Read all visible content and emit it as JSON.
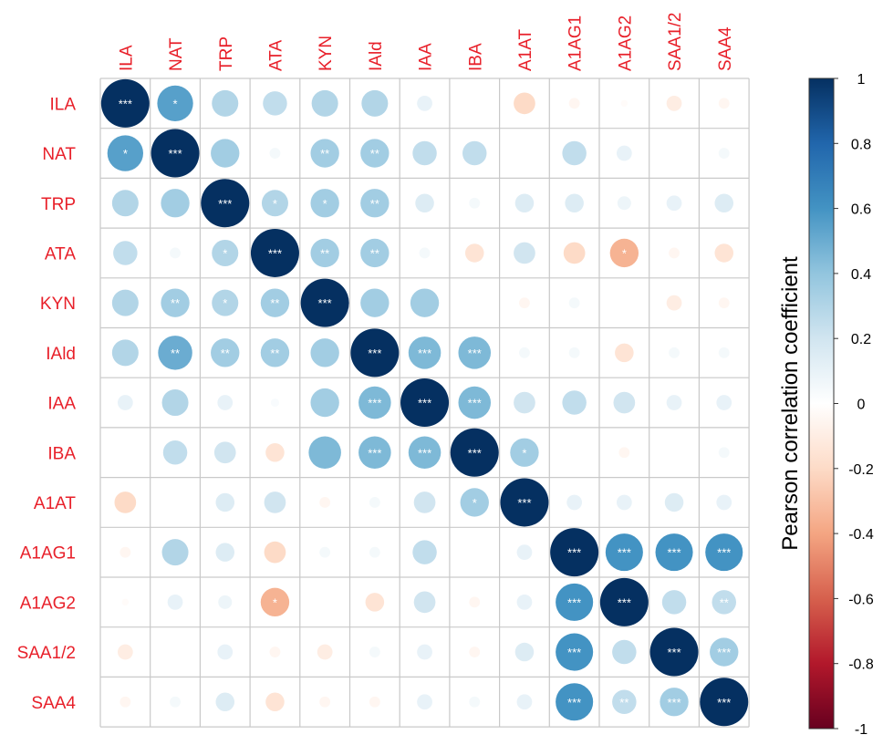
{
  "chart_data": {
    "type": "heatmap",
    "subtype": "correlation-circle-matrix",
    "variables": [
      "ILA",
      "NAT",
      "TRP",
      "ATA",
      "KYN",
      "IAld",
      "IAA",
      "IBA",
      "A1AT",
      "A1AG1",
      "A1AG2",
      "SAA1/2",
      "SAA4"
    ],
    "matrix": [
      [
        1.0,
        0.55,
        0.3,
        0.25,
        0.3,
        0.3,
        0.1,
        0.0,
        -0.2,
        -0.05,
        -0.02,
        -0.1,
        -0.05
      ],
      [
        0.55,
        1.0,
        0.35,
        0.05,
        0.35,
        0.35,
        0.25,
        0.25,
        0.0,
        0.25,
        0.1,
        0.0,
        0.05
      ],
      [
        0.3,
        0.35,
        1.0,
        0.3,
        0.35,
        0.35,
        0.15,
        0.05,
        0.15,
        0.15,
        0.08,
        0.1,
        0.15
      ],
      [
        0.25,
        0.05,
        0.3,
        1.0,
        0.35,
        0.35,
        0.05,
        -0.15,
        0.2,
        -0.2,
        -0.35,
        -0.05,
        -0.15
      ],
      [
        0.3,
        0.35,
        0.3,
        0.35,
        1.0,
        0.35,
        0.35,
        0.0,
        -0.05,
        0.05,
        0.0,
        -0.1,
        -0.05
      ],
      [
        0.3,
        0.5,
        0.35,
        0.35,
        0.35,
        1.0,
        0.45,
        0.45,
        0.05,
        0.05,
        -0.15,
        0.05,
        0.05
      ],
      [
        0.1,
        0.3,
        0.1,
        0.03,
        0.35,
        0.45,
        1.0,
        0.45,
        0.2,
        0.25,
        0.2,
        0.1,
        0.1
      ],
      [
        0.0,
        0.25,
        0.2,
        -0.15,
        0.45,
        0.45,
        0.45,
        1.0,
        0.35,
        0.0,
        -0.05,
        0.0,
        0.05
      ],
      [
        -0.2,
        0.0,
        0.15,
        0.2,
        -0.05,
        0.05,
        0.2,
        0.35,
        1.0,
        0.1,
        0.1,
        0.15,
        0.1
      ],
      [
        -0.05,
        0.3,
        0.15,
        -0.2,
        0.05,
        0.05,
        0.25,
        0.0,
        0.1,
        1.0,
        0.6,
        0.6,
        0.6
      ],
      [
        -0.02,
        0.1,
        0.08,
        -0.35,
        0.0,
        -0.15,
        0.2,
        -0.05,
        0.1,
        0.6,
        1.0,
        0.25,
        0.25
      ],
      [
        -0.1,
        0.0,
        0.1,
        -0.05,
        -0.1,
        0.05,
        0.1,
        -0.05,
        0.15,
        0.6,
        0.25,
        1.0,
        0.35
      ],
      [
        -0.05,
        0.05,
        0.15,
        -0.15,
        -0.05,
        -0.05,
        0.1,
        0.05,
        0.1,
        0.6,
        0.25,
        0.35,
        1.0
      ]
    ],
    "significance": [
      [
        "***",
        "*",
        "",
        "",
        "",
        "",
        "",
        "",
        "",
        "",
        "",
        "",
        ""
      ],
      [
        "*",
        "***",
        "",
        "",
        "**",
        "**",
        "",
        "",
        "",
        "",
        "",
        "",
        ""
      ],
      [
        "",
        "",
        "***",
        "*",
        "*",
        "**",
        "",
        "",
        "",
        "",
        "",
        "",
        ""
      ],
      [
        "",
        "",
        "*",
        "***",
        "**",
        "**",
        "",
        "",
        "",
        "",
        "*",
        "",
        ""
      ],
      [
        "",
        "**",
        "*",
        "**",
        "***",
        "",
        "",
        "",
        "",
        "",
        "",
        "",
        ""
      ],
      [
        "",
        "**",
        "**",
        "**",
        "",
        "***",
        "***",
        "***",
        "",
        "",
        "",
        "",
        ""
      ],
      [
        "",
        "",
        "",
        "",
        "",
        "***",
        "***",
        "***",
        "",
        "",
        "",
        "",
        ""
      ],
      [
        "",
        "",
        "",
        "",
        "",
        "***",
        "***",
        "***",
        "*",
        "",
        "",
        "",
        ""
      ],
      [
        "",
        "",
        "",
        "",
        "",
        "",
        "",
        "*",
        "***",
        "",
        "",
        "",
        ""
      ],
      [
        "",
        "",
        "",
        "",
        "",
        "",
        "",
        "",
        "",
        "***",
        "***",
        "***",
        "***"
      ],
      [
        "",
        "",
        "",
        "*",
        "",
        "",
        "",
        "",
        "",
        "***",
        "***",
        "",
        "**"
      ],
      [
        "",
        "",
        "",
        "",
        "",
        "",
        "",
        "",
        "",
        "***",
        "",
        "***",
        "***"
      ],
      [
        "",
        "",
        "",
        "",
        "",
        "",
        "",
        "",
        "",
        "***",
        "**",
        "***",
        "***"
      ]
    ],
    "legend": {
      "title": "Pearson correlation coefficient",
      "ticks": [
        "1",
        "0.8",
        "0.6",
        "0.4",
        "0.2",
        "0",
        "-0.2",
        "-0.4",
        "-0.6",
        "-0.8",
        "-1"
      ],
      "tick_values": [
        1,
        0.8,
        0.6,
        0.4,
        0.2,
        0,
        -0.2,
        -0.4,
        -0.6,
        -0.8,
        -1
      ],
      "position": "right",
      "range": [
        -1,
        1
      ]
    },
    "colors": {
      "label": "#e8202a",
      "grid": "#c9c9c9",
      "star": "#ffffff",
      "text": "#000000",
      "scale_stops": [
        "#67001f",
        "#b2182b",
        "#d6604d",
        "#f4a582",
        "#fddbc7",
        "#ffffff",
        "#d1e5f0",
        "#92c5de",
        "#4393c3",
        "#2166ac",
        "#053061"
      ]
    }
  }
}
